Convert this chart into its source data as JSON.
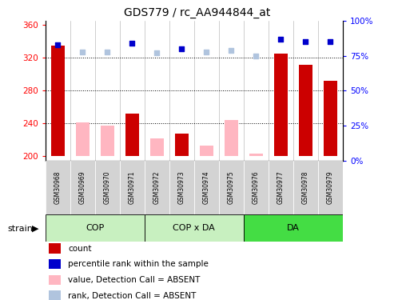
{
  "title": "GDS779 / rc_AA944844_at",
  "samples": [
    "GSM30968",
    "GSM30969",
    "GSM30970",
    "GSM30971",
    "GSM30972",
    "GSM30973",
    "GSM30974",
    "GSM30975",
    "GSM30976",
    "GSM30977",
    "GSM30978",
    "GSM30979"
  ],
  "detection": [
    "P",
    "A",
    "A",
    "P",
    "A",
    "P",
    "A",
    "A",
    "A",
    "P",
    "P",
    "P"
  ],
  "count_values": [
    335,
    null,
    null,
    252,
    null,
    228,
    null,
    null,
    null,
    325,
    312,
    292
  ],
  "absent_values": [
    null,
    241,
    238,
    null,
    222,
    null,
    213,
    244,
    203,
    null,
    null,
    null
  ],
  "rank_present": [
    83,
    null,
    null,
    84,
    null,
    80,
    null,
    null,
    null,
    87,
    85,
    85
  ],
  "rank_absent": [
    null,
    78,
    78,
    null,
    77,
    null,
    78,
    79,
    75,
    null,
    null,
    null
  ],
  "ylim_left": [
    195,
    365
  ],
  "ylim_right": [
    0,
    100
  ],
  "yticks_left": [
    200,
    240,
    280,
    320,
    360
  ],
  "yticks_right": [
    0,
    25,
    50,
    75,
    100
  ],
  "bar_color_present": "#cc0000",
  "bar_color_absent": "#ffb6c1",
  "square_color_present": "#0000cc",
  "square_color_absent": "#b0c4de",
  "plot_bg": "#ffffff",
  "group_defs": [
    {
      "name": "COP",
      "start": 0,
      "end": 3,
      "color": "#c8f0c0"
    },
    {
      "name": "COP x DA",
      "start": 4,
      "end": 7,
      "color": "#c8f0c0"
    },
    {
      "name": "DA",
      "start": 8,
      "end": 11,
      "color": "#44dd44"
    }
  ],
  "legend_items": [
    {
      "color": "#cc0000",
      "label": "count"
    },
    {
      "color": "#0000cc",
      "label": "percentile rank within the sample"
    },
    {
      "color": "#ffb6c1",
      "label": "value, Detection Call = ABSENT"
    },
    {
      "color": "#b0c4de",
      "label": "rank, Detection Call = ABSENT"
    }
  ],
  "sample_box_color": "#d3d3d3",
  "strain_label": "strain",
  "base": 200,
  "bar_width": 0.55
}
